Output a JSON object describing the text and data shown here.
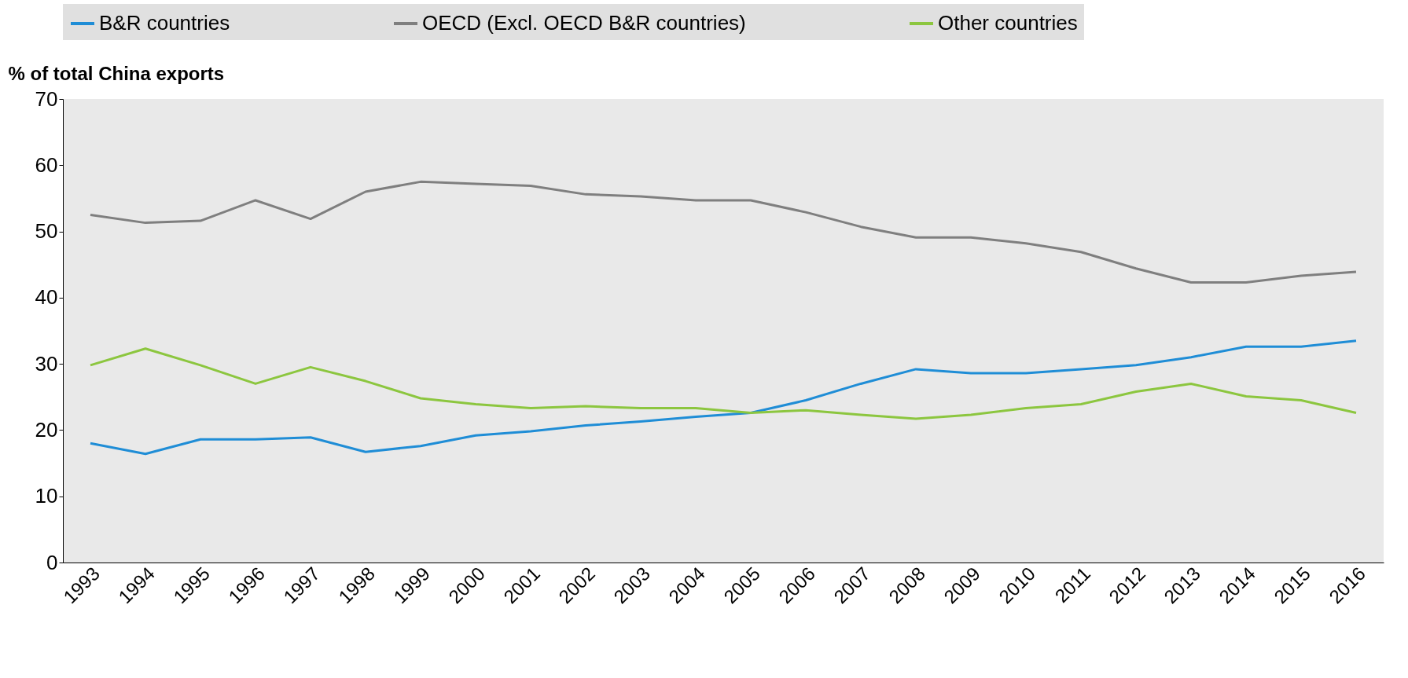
{
  "chart_data": {
    "type": "line",
    "ylabel": "% of total China exports",
    "categories": [
      "1993",
      "1994",
      "1995",
      "1996",
      "1997",
      "1998",
      "1999",
      "2000",
      "2001",
      "2002",
      "2003",
      "2004",
      "2005",
      "2006",
      "2007",
      "2008",
      "2009",
      "2010",
      "2011",
      "2012",
      "2013",
      "2014",
      "2015",
      "2016"
    ],
    "series": [
      {
        "name": "B&R countries",
        "color": "#1f8dd6",
        "values": [
          18.0,
          16.4,
          18.6,
          18.6,
          18.9,
          16.7,
          17.6,
          19.2,
          19.8,
          20.7,
          21.3,
          22.0,
          22.6,
          24.5,
          27.0,
          29.2,
          28.6,
          28.6,
          29.2,
          29.8,
          31.0,
          32.6,
          32.6,
          33.5
        ]
      },
      {
        "name": "OECD (Excl. OECD B&R countries)",
        "color": "#7f7f7f",
        "values": [
          52.5,
          51.3,
          51.6,
          54.7,
          51.9,
          56.0,
          57.5,
          57.2,
          56.9,
          55.6,
          55.3,
          54.7,
          54.7,
          52.9,
          50.7,
          49.1,
          49.1,
          48.2,
          46.9,
          44.4,
          42.3,
          42.3,
          43.3,
          43.9
        ]
      },
      {
        "name": "Other countries",
        "color": "#8cc63f",
        "values": [
          29.8,
          32.3,
          29.8,
          27.0,
          29.5,
          27.4,
          24.8,
          23.9,
          23.3,
          23.6,
          23.3,
          23.3,
          22.6,
          23.0,
          22.3,
          21.7,
          22.3,
          23.3,
          23.9,
          25.8,
          27.0,
          25.1,
          24.5,
          22.6
        ]
      }
    ],
    "ylim": [
      0,
      70
    ],
    "yticks": [
      0,
      10,
      20,
      30,
      40,
      50,
      60,
      70
    ],
    "grid": false,
    "legend": "top",
    "marker": "none",
    "line_style": "solid"
  }
}
